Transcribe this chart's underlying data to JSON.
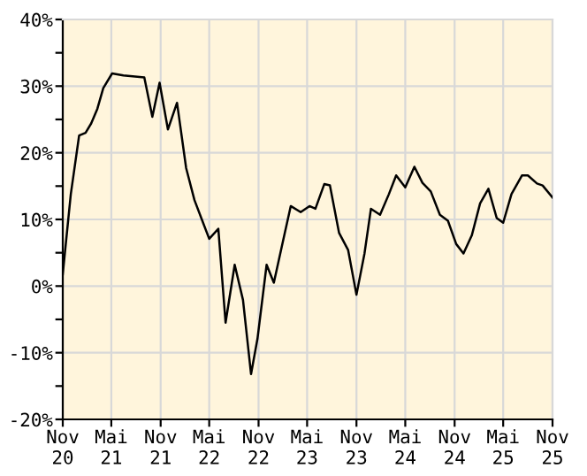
{
  "chart_data": {
    "type": "line",
    "x": [
      "2020-11-01",
      "2020-11-10",
      "2020-12-01",
      "2021-01-01",
      "2021-01-25",
      "2021-02-15",
      "2021-03-10",
      "2021-04-01",
      "2021-05-04",
      "2021-06-15",
      "2021-09-01",
      "2021-10-01",
      "2021-10-28",
      "2021-11-28",
      "2022-01-01",
      "2022-02-04",
      "2022-03-07",
      "2022-04-10",
      "2022-05-01",
      "2022-06-04",
      "2022-07-01",
      "2022-08-04",
      "2022-09-04",
      "2022-10-04",
      "2022-10-28",
      "2022-12-01",
      "2022-12-28",
      "2023-02-07",
      "2023-03-01",
      "2023-04-07",
      "2023-05-10",
      "2023-06-01",
      "2023-07-04",
      "2023-07-25",
      "2023-08-28",
      "2023-10-01",
      "2023-11-01",
      "2023-12-01",
      "2023-12-25",
      "2024-01-28",
      "2024-03-01",
      "2024-03-28",
      "2024-05-01",
      "2024-06-04",
      "2024-07-04",
      "2024-08-04",
      "2024-09-07",
      "2024-10-07",
      "2024-11-07",
      "2024-12-04",
      "2025-01-04",
      "2025-02-04",
      "2025-03-07",
      "2025-04-07",
      "2025-05-01",
      "2025-06-01",
      "2025-07-10",
      "2025-08-01",
      "2025-09-04",
      "2025-09-25",
      "2025-11-01"
    ],
    "series": [
      {
        "color": "#000000",
        "values": [
          1.8,
          5.4,
          13.8,
          22.6,
          23.0,
          24.4,
          26.6,
          29.7,
          31.9,
          31.6,
          31.3,
          25.4,
          30.5,
          23.5,
          27.5,
          17.7,
          12.9,
          9.3,
          7.1,
          8.6,
          -5.5,
          3.2,
          -2.1,
          -13.2,
          -7.9,
          3.2,
          0.5,
          8.0,
          12.0,
          11.1,
          12.0,
          11.6,
          15.3,
          15.1,
          8.0,
          5.4,
          -1.3,
          4.9,
          11.6,
          10.7,
          13.8,
          16.6,
          14.8,
          17.9,
          15.5,
          14.2,
          10.7,
          9.8,
          6.3,
          4.9,
          7.6,
          12.4,
          14.6,
          10.2,
          9.5,
          13.8,
          16.6,
          16.6,
          15.4,
          15.1,
          13.3
        ]
      }
    ],
    "xlim": [
      "2020-11-01",
      "2025-11-01"
    ],
    "xticks": [
      {
        "value": "2020-11-01",
        "label": "Nov\n20"
      },
      {
        "value": "2021-05-01",
        "label": "Mai\n21"
      },
      {
        "value": "2021-11-01",
        "label": "Nov\n21"
      },
      {
        "value": "2022-05-01",
        "label": "Mai\n22"
      },
      {
        "value": "2022-11-01",
        "label": "Nov\n22"
      },
      {
        "value": "2023-05-01",
        "label": "Mai\n23"
      },
      {
        "value": "2023-11-01",
        "label": "Nov\n23"
      },
      {
        "value": "2024-05-01",
        "label": "Mai\n24"
      },
      {
        "value": "2024-11-01",
        "label": "Nov\n24"
      },
      {
        "value": "2025-05-01",
        "label": "Mai\n25"
      },
      {
        "value": "2025-11-01",
        "label": "Nov\n25"
      }
    ],
    "ylim": [
      -20,
      40
    ],
    "yticks": [
      {
        "value": -20,
        "label": "-20%"
      },
      {
        "value": -15,
        "label": null
      },
      {
        "value": -10,
        "label": "-10%"
      },
      {
        "value": -5,
        "label": null
      },
      {
        "value": 0,
        "label": "0%"
      },
      {
        "value": 5,
        "label": null
      },
      {
        "value": 10,
        "label": "10%"
      },
      {
        "value": 15,
        "label": null
      },
      {
        "value": 20,
        "label": "20%"
      },
      {
        "value": 25,
        "label": null
      },
      {
        "value": 30,
        "label": "30%"
      },
      {
        "value": 35,
        "label": null
      },
      {
        "value": 40,
        "label": "40%"
      }
    ],
    "grid": true,
    "line_style": "solid",
    "marker": "none"
  }
}
